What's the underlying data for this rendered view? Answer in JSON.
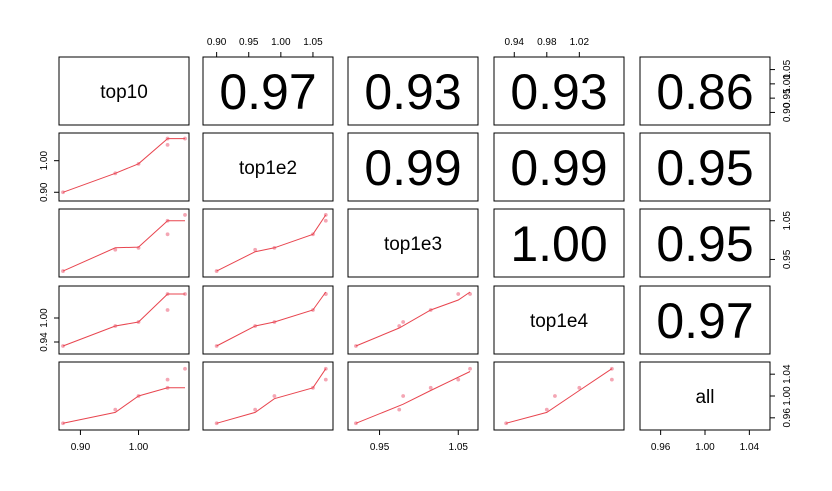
{
  "chart_data": {
    "type": "scatter",
    "title": "",
    "variables": [
      "top10",
      "top1e2",
      "top1e3",
      "top1e4",
      "all"
    ],
    "correlations": [
      {
        "row": 0,
        "col": 1,
        "text": "0.97"
      },
      {
        "row": 0,
        "col": 2,
        "text": "0.93"
      },
      {
        "row": 0,
        "col": 3,
        "text": "0.93"
      },
      {
        "row": 0,
        "col": 4,
        "text": "0.86"
      },
      {
        "row": 1,
        "col": 2,
        "text": "0.99"
      },
      {
        "row": 1,
        "col": 3,
        "text": "0.99"
      },
      {
        "row": 1,
        "col": 4,
        "text": "0.95"
      },
      {
        "row": 2,
        "col": 3,
        "text": "1.00"
      },
      {
        "row": 2,
        "col": 4,
        "text": "0.95"
      },
      {
        "row": 3,
        "col": 4,
        "text": "0.97"
      }
    ],
    "ranges": [
      [
        0.87,
        1.08
      ],
      [
        0.885,
        1.075
      ],
      [
        0.915,
        1.07
      ],
      [
        0.92,
        1.07
      ],
      [
        0.945,
        1.055
      ]
    ],
    "values": {
      "top10": [
        0.87,
        0.96,
        1.0,
        1.05,
        1.05,
        1.08
      ],
      "top1e2": [
        0.9,
        0.96,
        0.99,
        1.05,
        1.07,
        1.07
      ],
      "top1e3": [
        0.92,
        0.975,
        0.98,
        1.015,
        1.05,
        1.065
      ],
      "top1e4": [
        0.93,
        0.98,
        0.99,
        1.02,
        1.06,
        1.06
      ],
      "all": [
        0.95,
        0.975,
        1.0,
        1.015,
        1.03,
        1.05
      ]
    },
    "smoothers": {
      "1-0": [
        [
          0.87,
          0.9
        ],
        [
          0.96,
          0.96
        ],
        [
          1.0,
          0.99
        ],
        [
          1.05,
          1.07
        ],
        [
          1.08,
          1.07
        ]
      ],
      "2-0": [
        [
          0.87,
          0.92
        ],
        [
          0.96,
          0.98
        ],
        [
          1.0,
          0.982
        ],
        [
          1.05,
          1.05
        ],
        [
          1.08,
          1.05
        ]
      ],
      "2-1": [
        [
          0.9,
          0.92
        ],
        [
          0.96,
          0.97
        ],
        [
          0.99,
          0.98
        ],
        [
          1.05,
          1.015
        ],
        [
          1.07,
          1.065
        ]
      ],
      "3-0": [
        [
          0.87,
          0.93
        ],
        [
          0.96,
          0.98
        ],
        [
          1.0,
          0.99
        ],
        [
          1.05,
          1.06
        ],
        [
          1.08,
          1.06
        ]
      ],
      "3-1": [
        [
          0.9,
          0.93
        ],
        [
          0.96,
          0.98
        ],
        [
          0.99,
          0.99
        ],
        [
          1.05,
          1.02
        ],
        [
          1.07,
          1.065
        ]
      ],
      "3-2": [
        [
          0.92,
          0.93
        ],
        [
          0.975,
          0.975
        ],
        [
          1.015,
          1.02
        ],
        [
          1.05,
          1.045
        ],
        [
          1.065,
          1.065
        ]
      ],
      "4-0": [
        [
          0.87,
          0.95
        ],
        [
          0.96,
          0.97
        ],
        [
          1.0,
          1.0
        ],
        [
          1.05,
          1.015
        ],
        [
          1.08,
          1.015
        ]
      ],
      "4-1": [
        [
          0.9,
          0.95
        ],
        [
          0.96,
          0.97
        ],
        [
          0.99,
          0.995
        ],
        [
          1.05,
          1.015
        ],
        [
          1.07,
          1.05
        ]
      ],
      "4-2": [
        [
          0.92,
          0.95
        ],
        [
          0.98,
          0.985
        ],
        [
          1.015,
          1.01
        ],
        [
          1.065,
          1.045
        ]
      ],
      "4-3": [
        [
          0.93,
          0.95
        ],
        [
          0.98,
          0.97
        ],
        [
          1.02,
          1.01
        ],
        [
          1.06,
          1.05
        ]
      ]
    },
    "axes": {
      "top": [
        {
          "col": 1,
          "ticks": [
            "0.90",
            "0.95",
            "1.00",
            "1.05"
          ],
          "values": [
            0.9,
            0.95,
            1.0,
            1.05
          ]
        },
        {
          "col": 3,
          "ticks": [
            "0.94",
            "0.98",
            "1.02"
          ],
          "values": [
            0.94,
            0.98,
            1.02
          ]
        }
      ],
      "bottom": [
        {
          "col": 0,
          "ticks": [
            "0.90",
            "1.00"
          ],
          "values": [
            0.9,
            1.0
          ]
        },
        {
          "col": 2,
          "ticks": [
            "0.95",
            "1.05"
          ],
          "values": [
            0.95,
            1.05
          ]
        },
        {
          "col": 4,
          "ticks": [
            "0.96",
            "1.00",
            "1.04"
          ],
          "values": [
            0.96,
            1.0,
            1.04
          ]
        }
      ],
      "left": [
        {
          "row": 1,
          "ticks": [
            "0.90",
            "1.00"
          ],
          "values": [
            0.9,
            1.0
          ]
        },
        {
          "row": 3,
          "ticks": [
            "0.94",
            "1.00"
          ],
          "values": [
            0.94,
            1.0
          ]
        }
      ],
      "right": [
        {
          "row": 0,
          "ticks": [
            "0.90",
            "0.95",
            "1.00",
            "1.05"
          ],
          "values": [
            0.9,
            0.95,
            1.0,
            1.05
          ]
        },
        {
          "row": 2,
          "ticks": [
            "0.95",
            "1.05"
          ],
          "values": [
            0.95,
            1.05
          ]
        },
        {
          "row": 4,
          "ticks": [
            "0.96",
            "1.00",
            "1.04"
          ],
          "values": [
            0.96,
            1.0,
            1.04
          ]
        }
      ]
    },
    "colors": {
      "points": "#f4a6b4",
      "smoother": "#e8454f",
      "frame": "#000000",
      "text": "#000000"
    }
  }
}
